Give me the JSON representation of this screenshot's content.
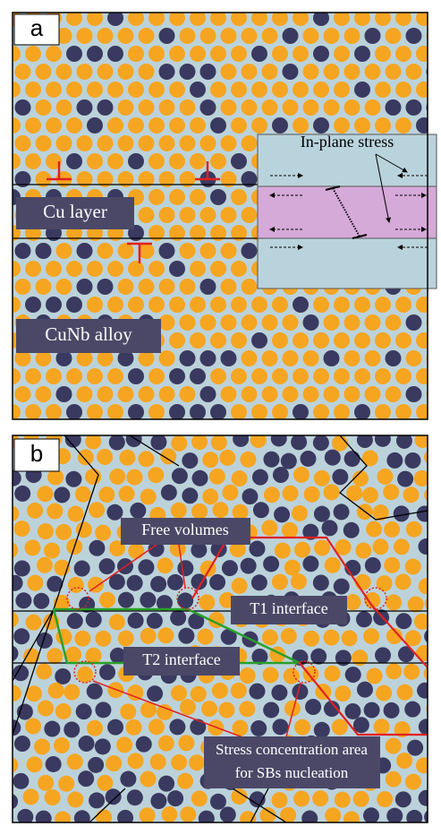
{
  "panel_a": {
    "label": "a",
    "inset_title": "In-plane stress",
    "layer_label": "Cu layer",
    "alloy_label": "CuNb alloy"
  },
  "panel_b": {
    "label": "b",
    "free_volumes": "Free volumes",
    "t1": "T1 interface",
    "t2": "T2 interface",
    "stress_line1": "Stress concentration area",
    "stress_line2": "for SBs nucleation"
  }
}
